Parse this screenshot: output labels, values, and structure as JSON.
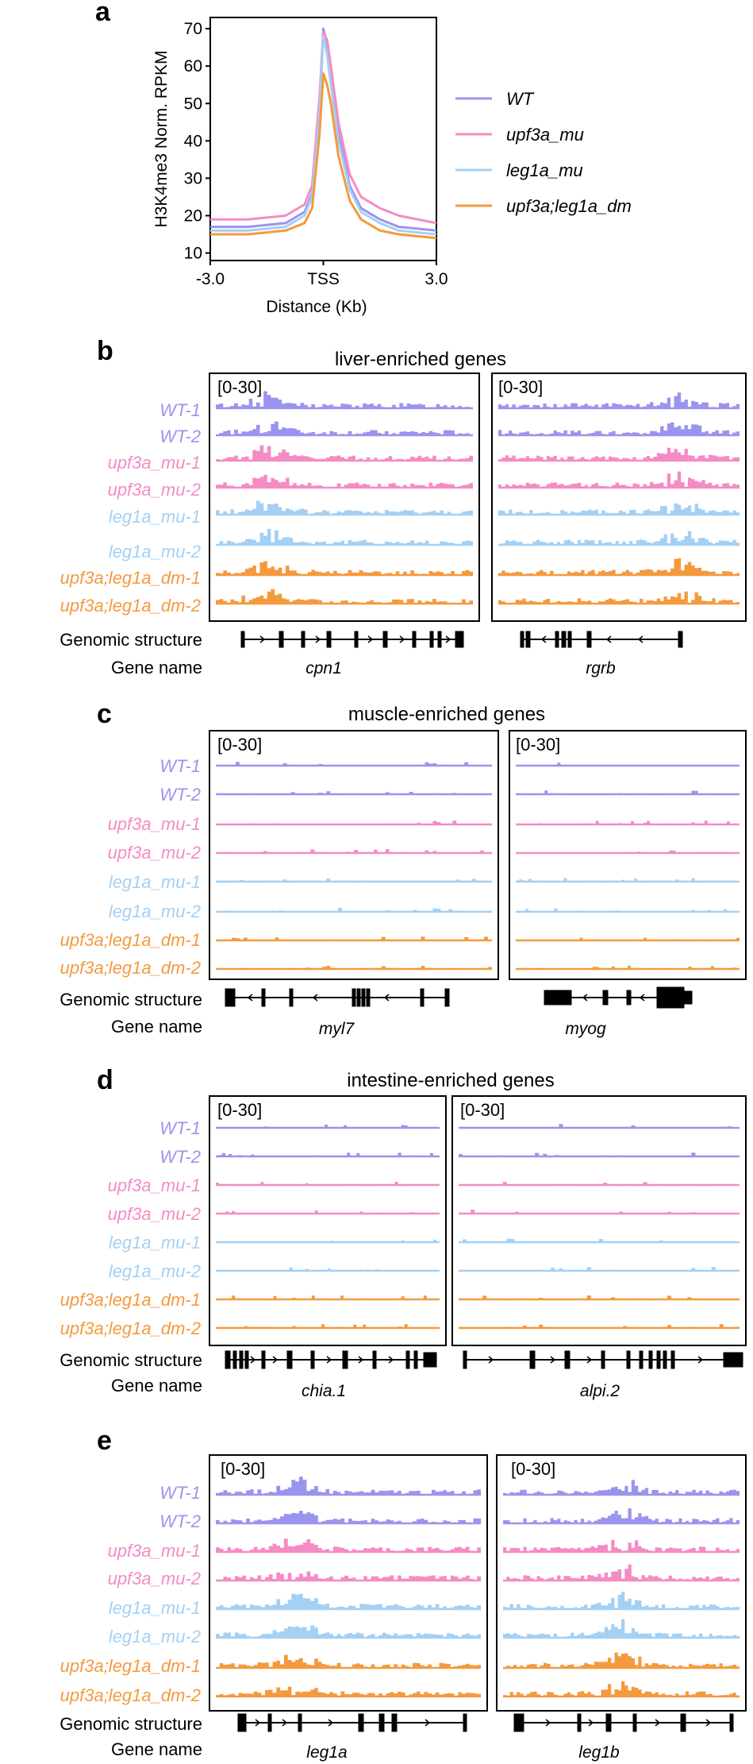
{
  "panel_a": {
    "label": "a",
    "chart_data": {
      "type": "line",
      "ylabel": "H3K4me3 Norm. RPKM",
      "xlabel": "Distance (Kb)",
      "x_ticks": [
        "-3.0",
        "TSS",
        "3.0"
      ],
      "y_ticks": [
        "10",
        "20",
        "30",
        "40",
        "50",
        "60",
        "70"
      ],
      "ylim": [
        8,
        73
      ],
      "x": [
        -3.0,
        -2.0,
        -1.0,
        -0.5,
        -0.3,
        -0.1,
        0.0,
        0.1,
        0.2,
        0.4,
        0.7,
        1.0,
        1.5,
        2.0,
        3.0
      ],
      "series": [
        {
          "name": "WT",
          "color": "#9b94ee",
          "values": [
            17,
            17,
            18,
            21,
            26,
            50,
            70,
            66,
            58,
            42,
            28,
            22,
            19,
            17,
            16
          ]
        },
        {
          "name": "upf3a_mu",
          "color": "#f48cc4",
          "values": [
            19,
            19,
            20,
            23,
            28,
            52,
            69,
            67,
            60,
            45,
            31,
            25,
            22,
            20,
            18
          ]
        },
        {
          "name": "leg1a_mu",
          "color": "#a4d0f4",
          "values": [
            16,
            16,
            17,
            20,
            25,
            48,
            68,
            63,
            55,
            40,
            27,
            21,
            18,
            16,
            15
          ]
        },
        {
          "name": "upf3a;leg1a_dm",
          "color": "#f49a3e",
          "values": [
            15,
            15,
            16,
            18,
            22,
            42,
            58,
            55,
            50,
            36,
            24,
            19,
            16,
            15,
            14
          ]
        }
      ]
    }
  },
  "track_labels": [
    {
      "text": "WT-1",
      "color": "#9b94ee"
    },
    {
      "text": "WT-2",
      "color": "#9b94ee"
    },
    {
      "text": "upf3a_mu-1",
      "color": "#f48cc4"
    },
    {
      "text": "upf3a_mu-2",
      "color": "#f48cc4"
    },
    {
      "text": "leg1a_mu-1",
      "color": "#a4d0f4"
    },
    {
      "text": "leg1a_mu-2",
      "color": "#a4d0f4"
    },
    {
      "text": "upf3a;leg1a_dm-1",
      "color": "#f49a3e"
    },
    {
      "text": "upf3a;leg1a_dm-2",
      "color": "#f49a3e"
    }
  ],
  "row_headers": {
    "structure": "Genomic structure",
    "gene": "Gene name"
  },
  "panels": [
    {
      "label": "b",
      "title": "liver-enriched genes",
      "genes": [
        {
          "name": "cpn1",
          "range": "[0-30]",
          "signal": [
            3,
            3,
            3,
            3,
            3,
            3,
            3,
            3
          ],
          "peak_pos": 0.2
        },
        {
          "name": "rgrb",
          "range": "[0-30]",
          "signal": [
            3,
            3,
            3,
            3,
            3,
            3,
            3,
            3
          ],
          "peak_pos": 0.75
        }
      ]
    },
    {
      "label": "c",
      "title": "muscle-enriched genes",
      "genes": [
        {
          "name": "myl7",
          "range": "[0-30]",
          "signal": [
            1,
            1,
            1,
            1,
            1,
            1,
            1,
            1
          ],
          "peak_pos": 0.5
        },
        {
          "name": "myog",
          "range": "[0-30]",
          "signal": [
            1,
            1,
            1,
            1,
            1,
            1,
            1,
            1
          ],
          "peak_pos": 0.5
        }
      ]
    },
    {
      "label": "d",
      "title": "intestine-enriched genes",
      "genes": [
        {
          "name": "chia.1",
          "range": "[0-30]",
          "signal": [
            1,
            1,
            1,
            1,
            1,
            1,
            1,
            1
          ],
          "peak_pos": 0.4
        },
        {
          "name": "alpi.2",
          "range": "[0-30]",
          "signal": [
            1,
            1,
            1,
            1,
            1,
            1,
            1,
            1
          ],
          "peak_pos": 0.2
        }
      ]
    },
    {
      "label": "e",
      "title": "",
      "genes": [
        {
          "name": "leg1a",
          "range": "[0-30]",
          "signal": [
            3,
            3,
            3,
            3,
            3,
            3,
            3,
            3
          ],
          "peak_pos": 0.3
        },
        {
          "name": "leg1b",
          "range": "[0-30]",
          "signal": [
            3,
            3,
            3,
            3,
            3,
            3,
            3,
            3
          ],
          "peak_pos": 0.5
        }
      ]
    }
  ]
}
